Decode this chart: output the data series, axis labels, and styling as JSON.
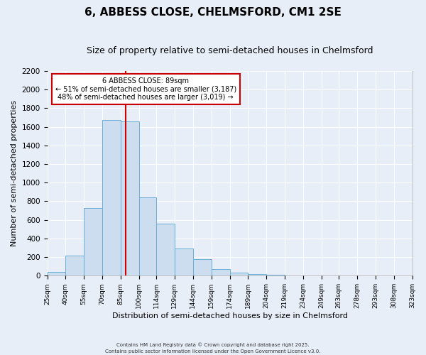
{
  "title": "6, ABBESS CLOSE, CHELMSFORD, CM1 2SE",
  "subtitle": "Size of property relative to semi-detached houses in Chelmsford",
  "xlabel": "Distribution of semi-detached houses by size in Chelmsford",
  "ylabel": "Number of semi-detached properties",
  "bin_edges": [
    25,
    40,
    55,
    70,
    85,
    100,
    114,
    129,
    144,
    159,
    174,
    189,
    204,
    219,
    234,
    249,
    263,
    278,
    293,
    308,
    323
  ],
  "bar_heights": [
    40,
    220,
    725,
    1670,
    1655,
    840,
    560,
    295,
    180,
    70,
    35,
    20,
    10,
    5,
    0,
    0,
    0,
    0,
    0,
    0
  ],
  "bar_color": "#ccddf0",
  "bar_edge_color": "#6aafd6",
  "property_size": 89,
  "vline_color": "#cc0000",
  "annotation_title": "6 ABBESS CLOSE: 89sqm",
  "annotation_line1": "← 51% of semi-detached houses are smaller (3,187)",
  "annotation_line2": "48% of semi-detached houses are larger (3,019) →",
  "annotation_box_color": "#cc0000",
  "annotation_fill_color": "#ffffff",
  "ylim": [
    0,
    2200
  ],
  "yticks": [
    0,
    200,
    400,
    600,
    800,
    1000,
    1200,
    1400,
    1600,
    1800,
    2000,
    2200
  ],
  "footer_line1": "Contains HM Land Registry data © Crown copyright and database right 2025.",
  "footer_line2": "Contains public sector information licensed under the Open Government Licence v3.0.",
  "background_color": "#e8eef8",
  "plot_background": "#e8eef8",
  "grid_color": "#ffffff",
  "title_fontsize": 11,
  "subtitle_fontsize": 9
}
